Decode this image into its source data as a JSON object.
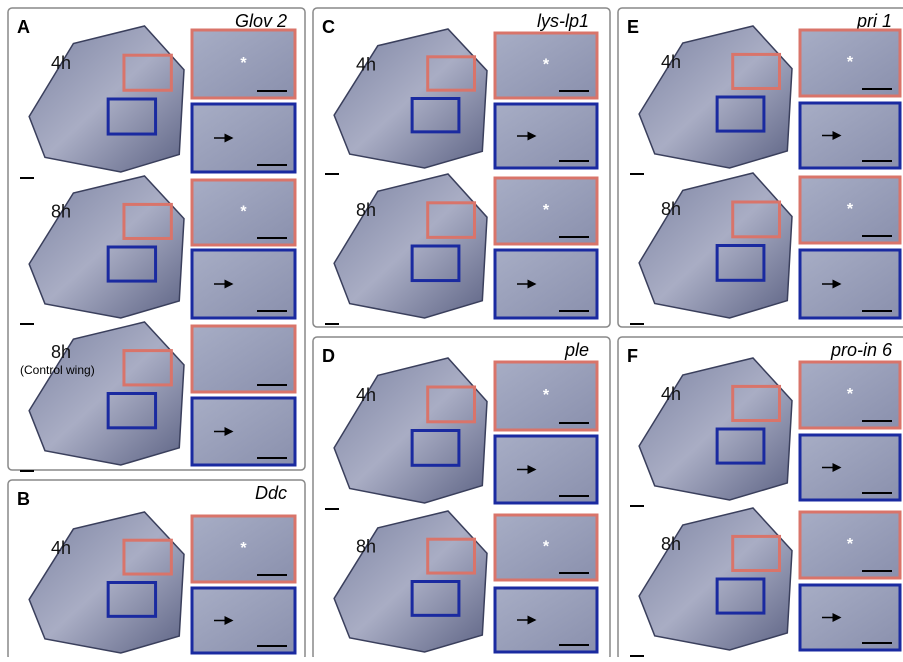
{
  "panels": [
    {
      "letter": "A",
      "gene": "Glov 2",
      "rows": [
        {
          "time": "4h",
          "mark": "*"
        },
        {
          "time": "8h",
          "mark": "*"
        },
        {
          "time": "8h",
          "note": "(Control wing)"
        }
      ]
    },
    {
      "letter": "B",
      "gene": "Ddc",
      "rows": [
        {
          "time": "4h",
          "mark": "*"
        }
      ]
    },
    {
      "letter": "C",
      "gene": "lys-lp1",
      "rows": [
        {
          "time": "4h",
          "mark": "*"
        },
        {
          "time": "8h",
          "mark": "*"
        }
      ]
    },
    {
      "letter": "D",
      "gene": "ple",
      "rows": [
        {
          "time": "4h",
          "mark": "*"
        },
        {
          "time": "8h",
          "mark": "*"
        }
      ]
    },
    {
      "letter": "E",
      "gene": "pri 1",
      "rows": [
        {
          "time": "4h",
          "mark": "*"
        },
        {
          "time": "8h",
          "mark": "*"
        }
      ]
    },
    {
      "letter": "F",
      "gene": "pro-in 6",
      "rows": [
        {
          "time": "4h",
          "mark": "*"
        },
        {
          "time": "8h",
          "mark": "*"
        }
      ]
    }
  ]
}
